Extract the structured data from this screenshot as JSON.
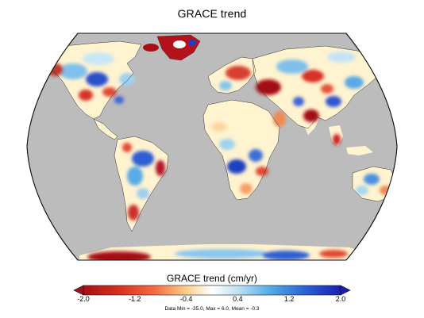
{
  "title": "GRACE trend",
  "colorbar": {
    "label": "GRACE trend (cm/yr)",
    "ticks": [
      "-2.0",
      "-1.2",
      "-0.4",
      "0.4",
      "1.2",
      "2.0"
    ],
    "range": [
      -2.0,
      2.0
    ],
    "colors": [
      "#a50f15",
      "#e34a33",
      "#f7a168",
      "#fde9b7",
      "#ffffff",
      "#c6e3f5",
      "#62b2e6",
      "#2b6bd1",
      "#1428a8"
    ],
    "extend": "both"
  },
  "stats_text": "Data Min = -35.0, Max = 6.0, Mean = -0.3",
  "projection": "Robinson-like global",
  "colors": {
    "ocean": "#bcbcbc",
    "land_neutral": "#fff6d8",
    "strong_negative": "#a50f15",
    "strong_positive": "#1f3fbf"
  }
}
